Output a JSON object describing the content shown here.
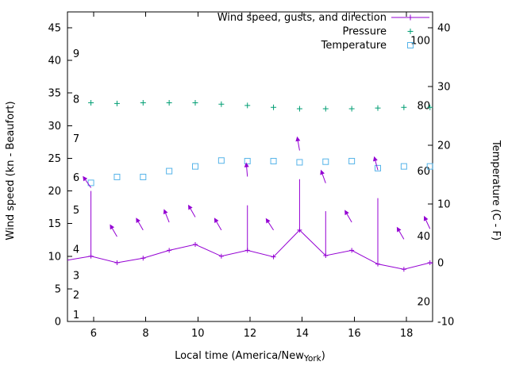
{
  "chart_data": {
    "type": "line",
    "title": "",
    "xlabel": "Local time (America/New_York)",
    "xlabel_parts": {
      "prefix": "Local time (America/New",
      "subscript": "York",
      "suffix": ")"
    },
    "ylabel_left": "Wind speed (kn - Beaufort)",
    "ylabel_right": "Temperature (C - F)",
    "x_range": [
      5,
      19
    ],
    "x_ticks": [
      6,
      8,
      10,
      12,
      14,
      16,
      18
    ],
    "y_left_ticks_kn": [
      0,
      5,
      10,
      15,
      20,
      25,
      30,
      35,
      40,
      45
    ],
    "y_right_ticks_c": [
      -10,
      0,
      10,
      20,
      30,
      40
    ],
    "beaufort_scale_labels": [
      {
        "label": "1",
        "kn": 1
      },
      {
        "label": "2",
        "kn": 4
      },
      {
        "label": "3",
        "kn": 7
      },
      {
        "label": "4",
        "kn": 11
      },
      {
        "label": "5",
        "kn": 17
      },
      {
        "label": "6",
        "kn": 22
      },
      {
        "label": "7",
        "kn": 28
      },
      {
        "label": "8",
        "kn": 34
      },
      {
        "label": "9",
        "kn": 41
      }
    ],
    "fahrenheit_scale_labels": [
      20,
      40,
      60,
      80,
      100
    ],
    "grid": false,
    "legend_position": "top-right-inside",
    "colors": {
      "wind": "#9400d3",
      "pressure": "#009e73",
      "temperature": "#56b4e9",
      "axis": "#000000",
      "background": "#ffffff"
    },
    "legend": [
      {
        "label": "Wind speed, gusts, and direction",
        "style": "line-plus",
        "series": "wind"
      },
      {
        "label": "Pressure",
        "style": "plus",
        "series": "pressure"
      },
      {
        "label": "Temperature",
        "style": "square",
        "series": "temperature"
      }
    ],
    "series": {
      "wind": {
        "name": "Wind speed, gusts, and direction",
        "unit": "kn",
        "x": [
          5.9,
          6.9,
          7.9,
          8.9,
          9.9,
          10.9,
          11.9,
          12.9,
          13.9,
          14.9,
          15.9,
          16.9,
          17.9,
          18.9
        ],
        "speed_kn": [
          10.0,
          9.0,
          9.7,
          10.9,
          11.8,
          10.0,
          10.9,
          9.9,
          14.0,
          10.1,
          10.9,
          8.8,
          8.0,
          9.0
        ],
        "gust_kn": [
          20.0,
          null,
          null,
          null,
          null,
          null,
          17.8,
          null,
          21.8,
          16.9,
          null,
          18.9,
          null,
          null
        ],
        "line_start": {
          "x": 5.0,
          "speed_kn": 9.4
        },
        "line_end": {
          "x": 19.0,
          "speed_kn": 8.9
        },
        "direction_arrows": [
          {
            "x": 5.9,
            "y_kn": 20.5,
            "angle_deg": -35
          },
          {
            "x": 6.9,
            "y_kn": 13.0,
            "angle_deg": -30
          },
          {
            "x": 7.9,
            "y_kn": 14.0,
            "angle_deg": -30
          },
          {
            "x": 8.9,
            "y_kn": 15.2,
            "angle_deg": -22
          },
          {
            "x": 9.9,
            "y_kn": 16.0,
            "angle_deg": -30
          },
          {
            "x": 10.9,
            "y_kn": 14.0,
            "angle_deg": -30
          },
          {
            "x": 11.9,
            "y_kn": 22.2,
            "angle_deg": -5
          },
          {
            "x": 12.9,
            "y_kn": 14.0,
            "angle_deg": -33
          },
          {
            "x": 13.9,
            "y_kn": 26.2,
            "angle_deg": -10
          },
          {
            "x": 14.9,
            "y_kn": 21.2,
            "angle_deg": -20
          },
          {
            "x": 15.9,
            "y_kn": 15.2,
            "angle_deg": -30
          },
          {
            "x": 16.9,
            "y_kn": 23.2,
            "angle_deg": -15
          },
          {
            "x": 17.9,
            "y_kn": 12.6,
            "angle_deg": -30
          },
          {
            "x": 18.9,
            "y_kn": 14.2,
            "angle_deg": -25
          }
        ]
      },
      "pressure": {
        "name": "Pressure",
        "unit": "left-axis units (no pressure scale shown)",
        "x": [
          5.9,
          6.9,
          7.9,
          8.9,
          9.9,
          10.9,
          11.9,
          12.9,
          13.9,
          14.9,
          15.9,
          16.9,
          17.9,
          18.9
        ],
        "value_left_axis": [
          33.5,
          33.4,
          33.5,
          33.5,
          33.5,
          33.3,
          33.1,
          32.8,
          32.6,
          32.6,
          32.6,
          32.7,
          32.8,
          32.8
        ]
      },
      "temperature": {
        "name": "Temperature",
        "unit": "C",
        "x": [
          5.9,
          6.9,
          7.9,
          8.9,
          9.9,
          10.9,
          11.9,
          12.9,
          13.9,
          14.9,
          15.9,
          16.9,
          17.9,
          18.9
        ],
        "value_c": [
          13.6,
          14.6,
          14.6,
          15.6,
          16.4,
          17.4,
          17.3,
          17.3,
          17.1,
          17.2,
          17.3,
          16.1,
          16.4,
          16.4
        ]
      }
    }
  }
}
